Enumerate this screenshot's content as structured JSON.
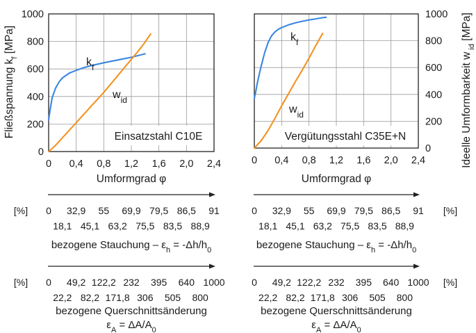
{
  "chart_data": [
    {
      "type": "line",
      "title": "",
      "box_label": "Einsatzstahl C10E",
      "xlabel": "Umformgrad φ",
      "ylabel": {
        "main": "Fließspannung k",
        "sub": "f",
        "unit": " [MPa]"
      },
      "xlim": [
        0,
        2.4
      ],
      "ylim": [
        0,
        1000
      ],
      "grid": true,
      "x_ticks": [
        "0",
        "0,4",
        "0,8",
        "1,2",
        "1,6",
        "2,0",
        "2,4"
      ],
      "y_ticks": [
        "0",
        "200",
        "400",
        "600",
        "800",
        "1000"
      ],
      "series": [
        {
          "name": {
            "main": "k",
            "sub": "f"
          },
          "color": "#3a86e0",
          "x": [
            0,
            0.02,
            0.05,
            0.1,
            0.15,
            0.2,
            0.3,
            0.4,
            0.5,
            0.6,
            0.8,
            1.0,
            1.2,
            1.4
          ],
          "y": [
            230,
            300,
            390,
            460,
            505,
            535,
            570,
            590,
            608,
            622,
            645,
            665,
            685,
            710
          ]
        },
        {
          "name": {
            "main": "w",
            "sub": "id"
          },
          "color": "#f39220",
          "x": [
            0,
            0.1,
            0.2,
            0.3,
            0.4,
            0.5,
            0.6,
            0.7,
            0.8,
            0.9,
            1.0,
            1.1,
            1.2,
            1.3,
            1.4,
            1.48
          ],
          "y": [
            0,
            45,
            100,
            155,
            210,
            265,
            320,
            375,
            430,
            490,
            550,
            610,
            670,
            730,
            795,
            855
          ]
        }
      ]
    },
    {
      "type": "line",
      "title": "",
      "box_label": "Vergütungsstahl C35E+N",
      "xlabel": "Umformgrad φ",
      "ylabel": {
        "main": "Ideelle Umformbarkeit w",
        "sub": " id",
        "unit": " [MPa]"
      },
      "xlim": [
        0,
        2.4
      ],
      "ylim": [
        0,
        1000
      ],
      "grid": true,
      "x_ticks": [
        "0",
        "0,4",
        "0,8",
        "1,2",
        "1,6",
        "2,0",
        "2,4"
      ],
      "y_ticks": [
        "0",
        "200",
        "400",
        "600",
        "800",
        "1000"
      ],
      "series": [
        {
          "name": {
            "main": "k",
            "sub": "f"
          },
          "color": "#3a86e0",
          "x": [
            0,
            0.02,
            0.05,
            0.1,
            0.15,
            0.2,
            0.25,
            0.3,
            0.35,
            0.4,
            0.5,
            0.6,
            0.7,
            0.8,
            0.9,
            1.0,
            1.05
          ],
          "y": [
            370,
            420,
            500,
            610,
            710,
            785,
            835,
            865,
            885,
            898,
            918,
            933,
            945,
            955,
            963,
            972,
            975
          ]
        },
        {
          "name": {
            "main": "w",
            "sub": "id"
          },
          "color": "#f39220",
          "x": [
            0,
            0.1,
            0.2,
            0.3,
            0.4,
            0.5,
            0.6,
            0.7,
            0.8,
            0.9,
            1.0
          ],
          "y": [
            0,
            55,
            130,
            220,
            315,
            405,
            495,
            580,
            670,
            765,
            855
          ]
        }
      ]
    }
  ],
  "scales": {
    "unit": "[%]",
    "stauchung": {
      "top": [
        "0",
        "32,9",
        "55",
        "69,9",
        "79,5",
        "86,5",
        "91"
      ],
      "bottom": [
        "18,1",
        "45,1",
        "63,2",
        "75,5",
        "83,5",
        "88,9"
      ],
      "caption_text": "bezogene Stauchung  – ε",
      "caption_sub1": "h",
      "caption_mid": " = -Δh/h",
      "caption_sub2": "0"
    },
    "querschnitt": {
      "top": [
        "0",
        "49,2",
        "122,2",
        "232",
        "395",
        "640",
        "1000"
      ],
      "bottom": [
        "22,2",
        "82,2",
        "171,8",
        "306",
        "505",
        "800"
      ],
      "caption_line1": "bezogene Querschnittsänderung",
      "caption_line2_a": "ε",
      "caption_line2_sub1": "A",
      "caption_line2_b": " = ΔA/A",
      "caption_line2_sub2": "0"
    }
  }
}
